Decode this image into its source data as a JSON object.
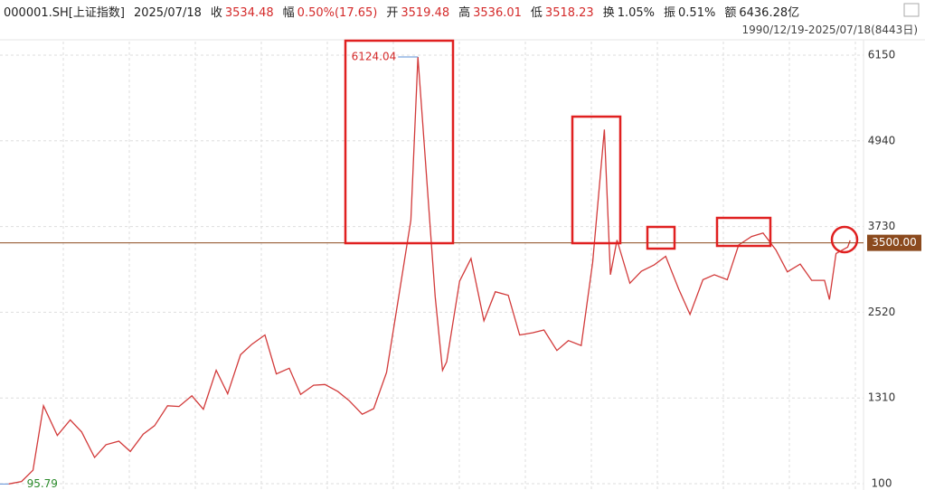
{
  "header": {
    "code": "000001.SH[上证指数]",
    "date": "2025/07/18",
    "items": [
      {
        "label": "收",
        "value": "3534.48",
        "color": "#d42a2a"
      },
      {
        "label": "幅",
        "value": "0.50%(17.65)",
        "color": "#d42a2a"
      },
      {
        "label": "开",
        "value": "3519.48",
        "color": "#d42a2a"
      },
      {
        "label": "高",
        "value": "3536.01",
        "color": "#d42a2a"
      },
      {
        "label": "低",
        "value": "3518.23",
        "color": "#d42a2a"
      },
      {
        "label": "换",
        "value": "1.05%",
        "color": "#222222"
      },
      {
        "label": "振",
        "value": "0.51%",
        "color": "#222222"
      },
      {
        "label": "额",
        "value": "6436.28亿",
        "color": "#222222"
      }
    ],
    "range": "1990/12/19-2025/07/18(8443日)"
  },
  "chart_data": {
    "type": "line",
    "x": [
      1990.97,
      1991.5,
      1991.97,
      1992.4,
      1992.97,
      1993.5,
      1993.97,
      1994.5,
      1994.97,
      1995.5,
      1995.97,
      1996.5,
      1996.97,
      1997.5,
      1997.97,
      1998.5,
      1998.97,
      1999.5,
      1999.97,
      2000.5,
      2000.97,
      2001.5,
      2001.97,
      2002.5,
      2002.97,
      2003.5,
      2003.97,
      2004.5,
      2004.97,
      2005.5,
      2005.97,
      2006.5,
      2006.97,
      2007.5,
      2007.79,
      2007.97,
      2008.5,
      2008.8,
      2008.97,
      2009.5,
      2009.97,
      2010.5,
      2010.97,
      2011.5,
      2011.97,
      2012.5,
      2012.97,
      2013.5,
      2013.97,
      2014.5,
      2014.97,
      2015.45,
      2015.7,
      2015.97,
      2016.5,
      2016.97,
      2017.5,
      2017.97,
      2018.5,
      2018.97,
      2019.5,
      2019.97,
      2020.5,
      2020.97,
      2021.5,
      2021.97,
      2022.5,
      2022.97,
      2023.5,
      2023.97,
      2024.5,
      2024.7,
      2024.97,
      2025.45,
      2025.55
    ],
    "series": [
      {
        "name": "上证指数",
        "color": "#d23a3a",
        "values": [
          95.79,
          130,
          290,
          1200,
          780,
          1000,
          830,
          470,
          650,
          700,
          555,
          800,
          920,
          1200,
          1190,
          1340,
          1150,
          1700,
          1370,
          1920,
          2070,
          2200,
          1650,
          1730,
          1360,
          1490,
          1500,
          1400,
          1270,
          1080,
          1160,
          1670,
          2680,
          3820,
          6124.04,
          5260,
          2740,
          1700,
          1820,
          2960,
          3280,
          2400,
          2810,
          2760,
          2200,
          2230,
          2270,
          1980,
          2120,
          2050,
          3230,
          5100,
          3050,
          3540,
          2930,
          3100,
          3190,
          3310,
          2850,
          2490,
          2980,
          3050,
          2980,
          3470,
          3590,
          3640,
          3400,
          3090,
          3200,
          2970,
          2970,
          2700,
          3350,
          3440,
          3534.48
        ]
      }
    ],
    "xlim": [
      1990.8,
      2026.1
    ],
    "ylim": [
      100,
      6150
    ],
    "yticks": [
      100,
      1310,
      2520,
      3730,
      4940,
      6150
    ],
    "grid": true,
    "price_line": {
      "value": 3500,
      "label": "3500.00",
      "color": "#8b4a1e"
    },
    "annotations": [
      {
        "text": "6124.04",
        "x": 2007.79,
        "y": 6124.04
      },
      {
        "text": "95.79",
        "x": 1990.97,
        "y": 95.79
      }
    ]
  }
}
